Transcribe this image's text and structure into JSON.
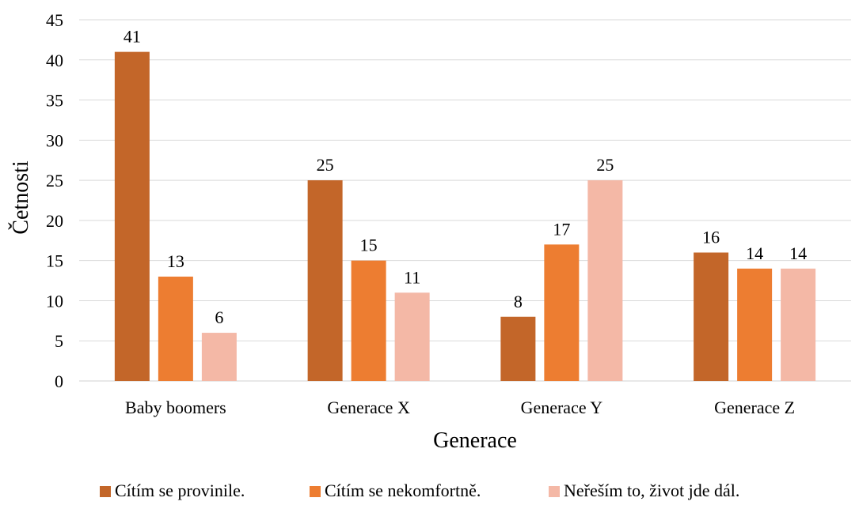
{
  "chart_data": {
    "type": "bar",
    "title": "",
    "xlabel": "Generace",
    "ylabel": "Četnosti",
    "categories": [
      "Baby boomers",
      "Generace X",
      "Generace Y",
      "Generace Z"
    ],
    "series": [
      {
        "name": "Cítím se provinile.",
        "color": "#c36629",
        "values": [
          41,
          25,
          8,
          16
        ]
      },
      {
        "name": "Cítím se nekomfortně.",
        "color": "#ed7d31",
        "values": [
          13,
          15,
          17,
          14
        ]
      },
      {
        "name": "Neřeším to, život jde dál.",
        "color": "#f4b8a6",
        "values": [
          6,
          11,
          25,
          14
        ]
      }
    ],
    "ylim": [
      0,
      45
    ],
    "ytick_step": 5,
    "grid": true,
    "data_labels": true,
    "legend_position": "bottom"
  }
}
